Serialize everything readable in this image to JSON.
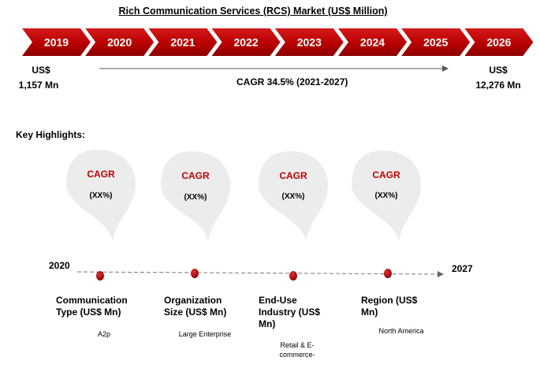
{
  "title": "Rich Communication Services (RCS) Market (US$ Million)",
  "years": [
    "2019",
    "2020",
    "2021",
    "2022",
    "2023",
    "2024",
    "2025",
    "2026"
  ],
  "start": {
    "currency": "US$",
    "value": "1,157 Mn"
  },
  "end": {
    "currency": "US$",
    "value": "12,276 Mn"
  },
  "cagr_text": "CAGR 34.5% (2021-2027)",
  "key_highlights_label": "Key Highlights:",
  "highlights": [
    {
      "cagr": "CAGR",
      "value": "(XX%)",
      "segment": "Communication Type (US$ Mn)",
      "example": "A2p"
    },
    {
      "cagr": "CAGR",
      "value": "(XX%)",
      "segment": "Organization Size (US$ Mn)",
      "example": "Large Enterprise"
    },
    {
      "cagr": "CAGR",
      "value": "(XX%)",
      "segment": "End-Use Industry (US$ Mn)",
      "example": "Retail & E-commerce-"
    },
    {
      "cagr": "CAGR",
      "value": "(XX%)",
      "segment": "Region (US$ Mn)",
      "example": "North America"
    }
  ],
  "timeline": {
    "start": "2020",
    "end": "2027"
  },
  "colors": {
    "chevron": "#c00000",
    "bubble": "#ececec",
    "dot": "#a50000",
    "cagr": "#c00000"
  }
}
